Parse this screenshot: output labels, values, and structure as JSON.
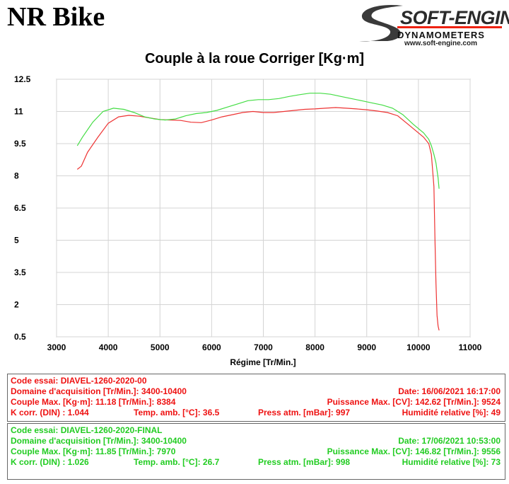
{
  "header": {
    "brand": "NR Bike",
    "logo_main": "SOFT-ENGINE",
    "logo_sub": "DYNAMOMETERS",
    "logo_url": "www.soft-engine.com"
  },
  "chart_data": {
    "type": "line",
    "title": "Couple à la roue Corriger [Kg·m]",
    "xlabel": "Régime [Tr/Min.]",
    "ylabel": "",
    "xlim": [
      3000,
      11000
    ],
    "ylim": [
      0.5,
      12.5
    ],
    "x_ticks": [
      "3000",
      "4000",
      "5000",
      "6000",
      "7000",
      "8000",
      "9000",
      "10000",
      "11000"
    ],
    "y_ticks": [
      "12.5",
      "11",
      "9.5",
      "8",
      "6.5",
      "5",
      "3.5",
      "2",
      "0.5"
    ],
    "grid": true,
    "series": [
      {
        "color": "#ee3333",
        "x": [
          3400,
          3480,
          3600,
          3800,
          4000,
          4200,
          4400,
          4600,
          4800,
          5000,
          5200,
          5400,
          5600,
          5800,
          6000,
          6200,
          6400,
          6600,
          6800,
          7000,
          7200,
          7400,
          7600,
          7800,
          8000,
          8200,
          8400,
          8600,
          8800,
          9000,
          9200,
          9400,
          9600,
          9800,
          10000,
          10100,
          10200,
          10250,
          10300,
          10320,
          10340,
          10360,
          10380,
          10400
        ],
        "y": [
          8.3,
          8.45,
          9.1,
          9.8,
          10.45,
          10.75,
          10.82,
          10.78,
          10.7,
          10.62,
          10.6,
          10.58,
          10.5,
          10.48,
          10.6,
          10.75,
          10.85,
          10.95,
          11.0,
          10.95,
          10.95,
          11.0,
          11.05,
          11.1,
          11.12,
          11.15,
          11.18,
          11.15,
          11.12,
          11.08,
          11.02,
          10.95,
          10.8,
          10.4,
          10.0,
          9.8,
          9.5,
          9.0,
          7.5,
          5.0,
          3.0,
          1.5,
          1.0,
          0.8
        ]
      },
      {
        "color": "#44dd44",
        "x": [
          3400,
          3500,
          3700,
          3900,
          4100,
          4300,
          4500,
          4700,
          4900,
          5100,
          5300,
          5500,
          5700,
          5900,
          6100,
          6300,
          6500,
          6700,
          6900,
          7100,
          7300,
          7500,
          7700,
          7900,
          8100,
          8300,
          8500,
          8700,
          8900,
          9100,
          9300,
          9500,
          9700,
          9900,
          10100,
          10200,
          10250,
          10300,
          10340,
          10380,
          10400
        ],
        "y": [
          9.4,
          9.8,
          10.5,
          11.0,
          11.15,
          11.1,
          10.95,
          10.75,
          10.65,
          10.6,
          10.65,
          10.8,
          10.9,
          10.95,
          11.05,
          11.2,
          11.35,
          11.5,
          11.55,
          11.55,
          11.6,
          11.7,
          11.78,
          11.85,
          11.85,
          11.8,
          11.7,
          11.6,
          11.5,
          11.4,
          11.3,
          11.15,
          10.85,
          10.4,
          10.0,
          9.7,
          9.4,
          9.0,
          8.6,
          7.9,
          7.4
        ]
      }
    ]
  },
  "runs": [
    {
      "color": "#ee1111",
      "code": "Code essai: DIAVEL-1260-2020-00",
      "domaine": "Domaine d'acquisition [Tr/Min.]: 3400-10400",
      "date": "Date: 16/06/2021   16:17:00",
      "couple": "Couple Max. [Kg·m]: 11.18   [Tr/Min.]: 8384",
      "puissance": "Puissance Max. [CV]: 142.62   [Tr/Min.]: 9524",
      "kcorr": "K corr. (DIN) : 1.044",
      "temp": "Temp. amb. [°C]: 36.5",
      "press": "Press atm. [mBar]: 997",
      "humid": "Humidité relative [%]: 49"
    },
    {
      "color": "#22cc22",
      "code": "Code essai: DIAVEL-1260-2020-FINAL",
      "domaine": "Domaine d'acquisition [Tr/Min.]: 3400-10400",
      "date": "Date: 17/06/2021   10:53:00",
      "couple": "Couple Max. [Kg·m]: 11.85   [Tr/Min.]: 7970",
      "puissance": "Puissance Max. [CV]: 146.82   [Tr/Min.]: 9556",
      "kcorr": "K corr. (DIN) : 1.026",
      "temp": "Temp. amb. [°C]: 26.7",
      "press": "Press atm. [mBar]: 998",
      "humid": "Humidité relative [%]: 73"
    }
  ]
}
